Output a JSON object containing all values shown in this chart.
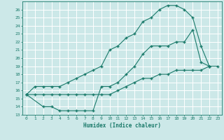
{
  "bg_color": "#cce8e8",
  "grid_color": "#ffffff",
  "line_color": "#1a7a6a",
  "marker": "+",
  "xlabel": "Humidex (Indice chaleur)",
  "xlim": [
    -0.5,
    23.5
  ],
  "ylim": [
    13,
    27
  ],
  "xticks": [
    0,
    1,
    2,
    3,
    4,
    5,
    6,
    7,
    8,
    9,
    10,
    11,
    12,
    13,
    14,
    15,
    16,
    17,
    18,
    19,
    20,
    21,
    22,
    23
  ],
  "yticks": [
    13,
    14,
    15,
    16,
    17,
    18,
    19,
    20,
    21,
    22,
    23,
    24,
    25,
    26
  ],
  "line1_x": [
    0,
    1,
    2,
    3,
    4,
    5,
    6,
    7,
    8,
    9,
    10,
    11,
    12,
    13,
    14,
    15,
    16,
    17,
    18,
    19,
    20,
    21,
    22
  ],
  "line1_y": [
    15.5,
    16.5,
    16.5,
    16.5,
    16.5,
    17.0,
    17.5,
    18.0,
    18.5,
    19.0,
    21.0,
    21.5,
    22.5,
    23.0,
    24.5,
    25.0,
    26.0,
    26.5,
    26.5,
    26.0,
    25.0,
    21.5,
    19.0
  ],
  "line2_x": [
    0,
    2,
    3,
    4,
    5,
    6,
    7,
    8,
    9,
    10,
    11,
    12,
    13,
    14,
    15,
    16,
    17,
    18,
    19,
    20,
    21,
    22
  ],
  "line2_y": [
    15.5,
    14.0,
    14.0,
    13.5,
    13.5,
    13.5,
    13.5,
    13.5,
    16.5,
    16.5,
    17.0,
    18.0,
    19.0,
    20.5,
    21.5,
    21.5,
    21.5,
    22.0,
    22.0,
    23.5,
    19.5,
    19.0
  ],
  "line3_x": [
    0,
    1,
    2,
    3,
    4,
    5,
    6,
    7,
    8,
    9,
    10,
    11,
    12,
    13,
    14,
    15,
    16,
    17,
    18,
    19,
    20,
    21,
    22,
    23
  ],
  "line3_y": [
    15.5,
    15.5,
    15.5,
    15.5,
    15.5,
    15.5,
    15.5,
    15.5,
    15.5,
    15.5,
    15.5,
    16.0,
    16.5,
    17.0,
    17.5,
    17.5,
    18.0,
    18.0,
    18.5,
    18.5,
    18.5,
    18.5,
    19.0,
    19.0
  ]
}
